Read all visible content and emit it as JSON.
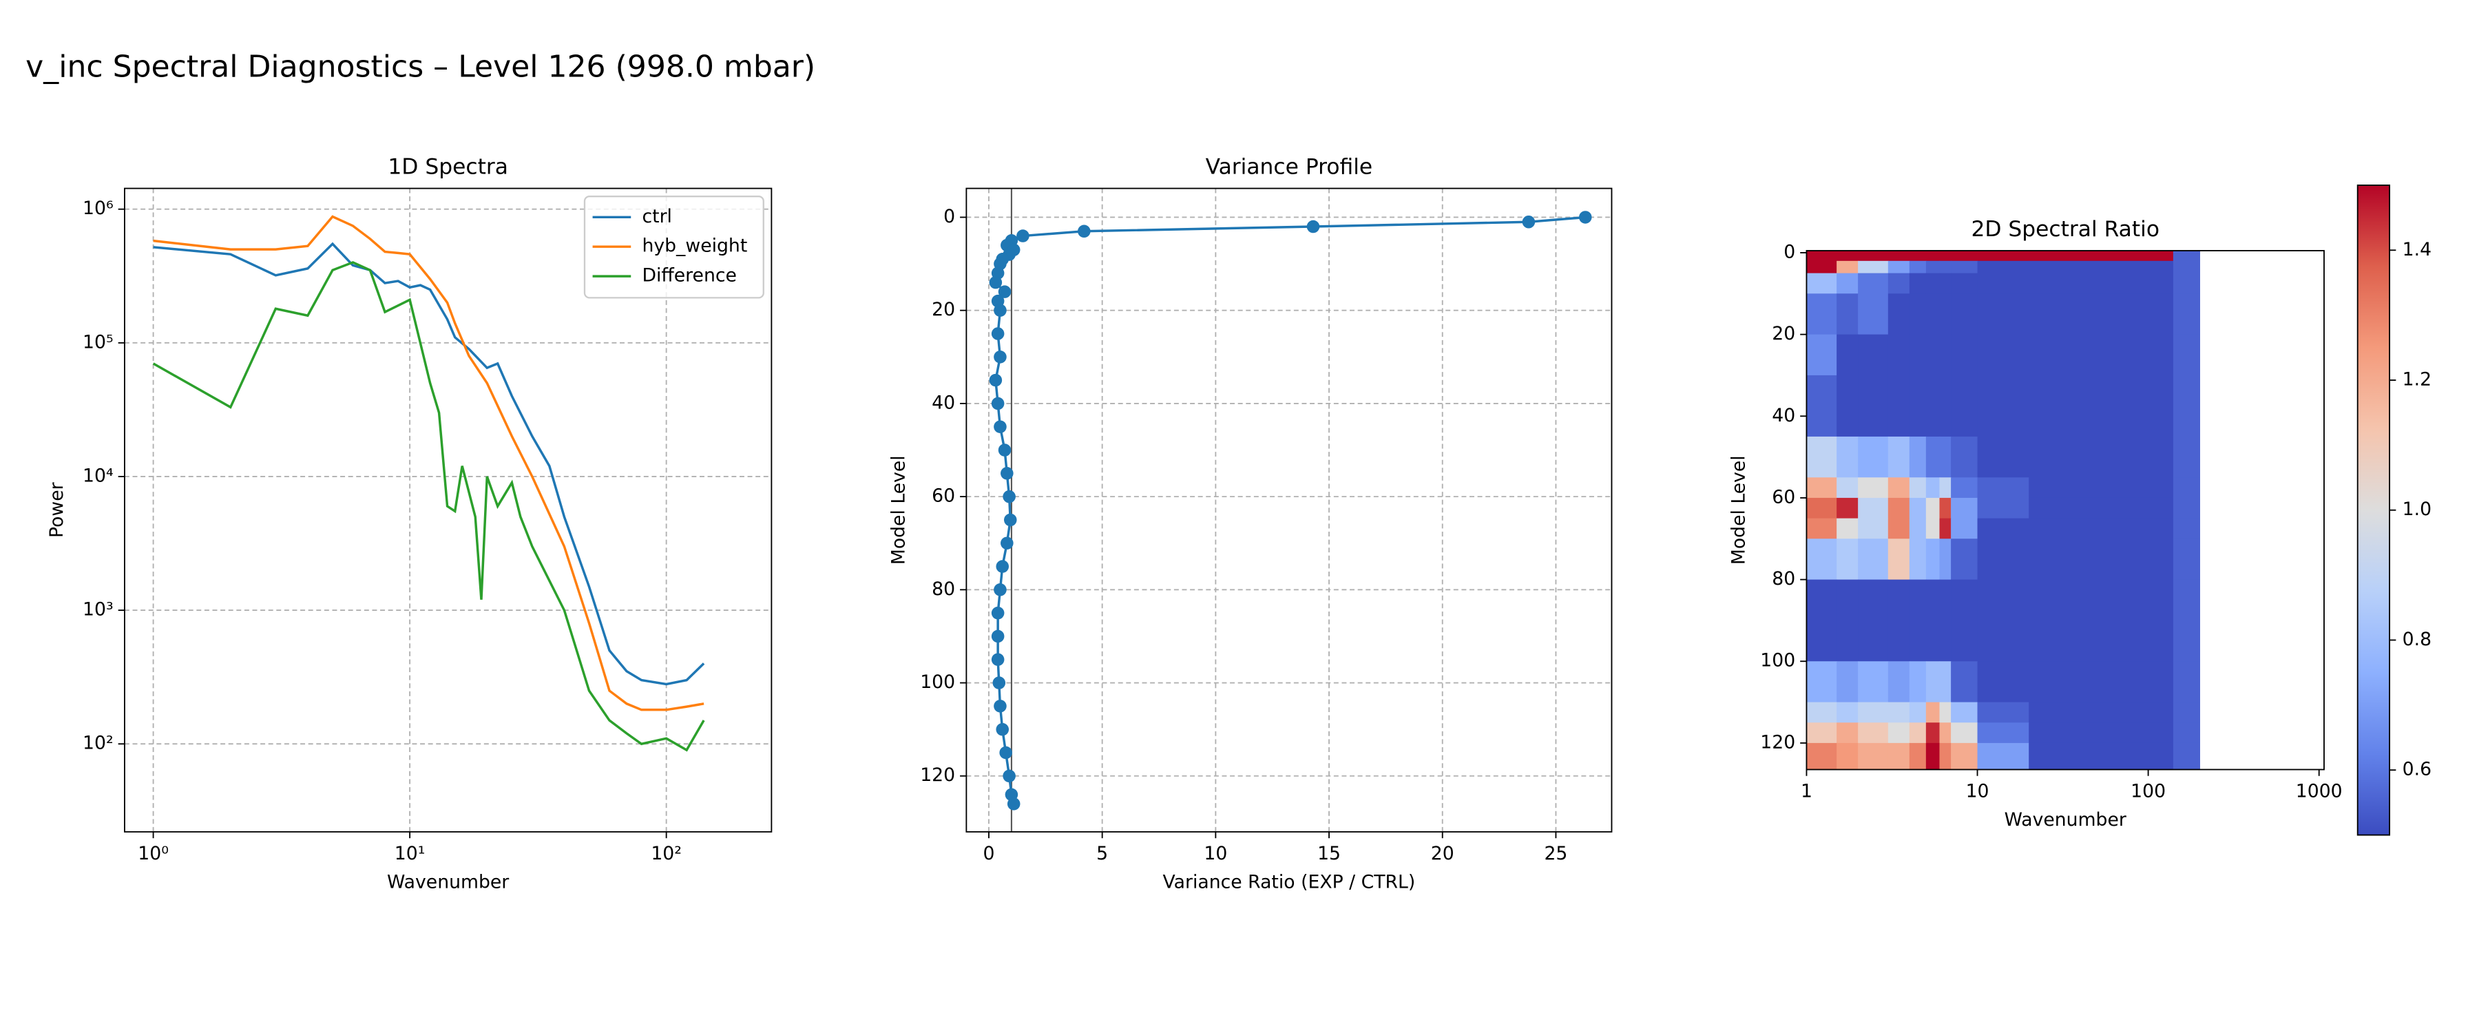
{
  "title": "v_inc Spectral Diagnostics – Level 126 (998.0 mbar)",
  "chart_data": [
    {
      "type": "line",
      "title": "1D Spectra",
      "x_label": "Wavenumber",
      "y_label": "Power",
      "xscale": "log",
      "yscale": "log",
      "xlim": [
        0.773,
        257
      ],
      "ylim": [
        22,
        1430000
      ],
      "xticks": [
        {
          "value": 1,
          "label": "10⁰"
        },
        {
          "value": 10,
          "label": "10¹"
        },
        {
          "value": 100,
          "label": "10²"
        }
      ],
      "yticks": [
        {
          "value": 100,
          "label": "10²"
        },
        {
          "value": 1000,
          "label": "10³"
        },
        {
          "value": 10000,
          "label": "10⁴"
        },
        {
          "value": 100000,
          "label": "10⁵"
        },
        {
          "value": 1000000,
          "label": "10⁶"
        }
      ],
      "grid": true,
      "legend": "upper right",
      "series": [
        {
          "name": "ctrl",
          "color": "#1f77b4",
          "x": [
            1,
            2,
            3,
            4,
            5,
            6,
            7,
            8,
            9,
            10,
            11,
            12,
            14,
            15,
            17,
            20,
            22,
            25,
            30,
            35,
            40,
            50,
            60,
            70,
            80,
            100,
            120,
            140
          ],
          "values": [
            520000,
            460000,
            320000,
            360000,
            550000,
            380000,
            350000,
            280000,
            290000,
            260000,
            270000,
            250000,
            150000,
            110000,
            90000,
            65000,
            70000,
            40000,
            20000,
            12000,
            5000,
            1500,
            500,
            350,
            300,
            280,
            300,
            400
          ]
        },
        {
          "name": "hyb_weight",
          "color": "#ff7f0e",
          "x": [
            1,
            2,
            3,
            4,
            5,
            6,
            7,
            8,
            9,
            10,
            12,
            14,
            15,
            17,
            20,
            25,
            30,
            40,
            50,
            60,
            70,
            80,
            100,
            120,
            140
          ],
          "values": [
            580000,
            500000,
            500000,
            530000,
            880000,
            750000,
            600000,
            480000,
            470000,
            460000,
            300000,
            200000,
            140000,
            80000,
            50000,
            20000,
            10000,
            3000,
            800,
            250,
            200,
            180,
            180,
            190,
            200
          ]
        },
        {
          "name": "Difference",
          "color": "#2ca02c",
          "x": [
            1,
            2,
            3,
            4,
            5,
            6,
            7,
            8,
            9,
            10,
            12,
            13,
            14,
            15,
            16,
            18,
            19,
            20,
            22,
            25,
            27,
            30,
            40,
            50,
            60,
            70,
            80,
            100,
            120,
            140
          ],
          "values": [
            70000,
            33000,
            180000,
            160000,
            350000,
            400000,
            350000,
            170000,
            190000,
            210000,
            50000,
            30000,
            6000,
            5500,
            12000,
            5000,
            1200,
            10000,
            6000,
            9000,
            5000,
            3000,
            1000,
            250,
            150,
            120,
            100,
            110,
            90,
            150
          ]
        }
      ]
    },
    {
      "type": "profile",
      "title": "Variance Profile",
      "x_label": "Variance Ratio (EXP / CTRL)",
      "y_label": "Model Level",
      "xlim": [
        -0.99,
        27.46
      ],
      "ylim": [
        -6.2,
        132
      ],
      "y_inverted": true,
      "xticks": [
        0,
        5,
        10,
        15,
        20,
        25
      ],
      "yticks": [
        0,
        20,
        40,
        60,
        80,
        100,
        120
      ],
      "grid": true,
      "reference_x": 1,
      "reference_color": "#555555",
      "series": [
        {
          "color": "#1f77b4",
          "x": [
            26.3,
            23.8,
            14.3,
            4.2,
            1.5,
            1.0,
            0.8,
            1.1,
            0.9,
            0.6,
            0.5,
            0.4,
            0.3,
            0.7,
            0.4,
            0.5,
            0.4,
            0.5,
            0.3,
            0.4,
            0.5,
            0.7,
            0.8,
            0.9,
            0.95,
            0.8,
            0.6,
            0.5,
            0.4,
            0.4,
            0.4,
            0.45,
            0.5,
            0.6,
            0.75,
            0.9,
            1.0,
            1.1
          ],
          "y": [
            0,
            1,
            2,
            3,
            4,
            5,
            6,
            7,
            8,
            9,
            10,
            12,
            14,
            16,
            18,
            20,
            25,
            30,
            35,
            40,
            45,
            50,
            55,
            60,
            65,
            70,
            75,
            80,
            85,
            90,
            95,
            100,
            105,
            110,
            115,
            120,
            124,
            126
          ]
        }
      ]
    },
    {
      "type": "heatmap",
      "title": "2D Spectral Ratio",
      "x_label": "Wavenumber",
      "y_label": "Model Level",
      "xscale": "log",
      "xlim": [
        1,
        1070
      ],
      "ylim": [
        -0.5,
        126.5
      ],
      "y_inverted": true,
      "xticks": [
        1,
        10,
        100,
        1000
      ],
      "yticks": [
        0,
        20,
        40,
        60,
        80,
        100,
        120
      ],
      "colormap": "coolwarm",
      "clim": [
        0.5,
        1.5
      ],
      "colorbar_ticks": [
        0.6,
        0.8,
        {
          "value": 1,
          "label": "1.0"
        },
        1.2,
        1.4
      ],
      "x_edges": [
        1,
        1.5,
        2,
        3,
        4,
        5,
        6,
        7,
        10,
        20,
        140,
        200
      ],
      "y_edges": [
        -0.5,
        2,
        5,
        10,
        20,
        30,
        45,
        55,
        60,
        65,
        70,
        80,
        100,
        110,
        115,
        120,
        126.5
      ],
      "z": [
        [
          1.5,
          1.5,
          1.5,
          1.5,
          1.5,
          1.5,
          1.5,
          1.5,
          1.5,
          1.5,
          0.55
        ],
        [
          1.5,
          1.2,
          0.9,
          0.7,
          0.6,
          0.55,
          0.55,
          0.55,
          0.5,
          0.5,
          0.55
        ],
        [
          0.8,
          0.7,
          0.6,
          0.55,
          0.5,
          0.5,
          0.5,
          0.5,
          0.5,
          0.5,
          0.55
        ],
        [
          0.6,
          0.55,
          0.6,
          0.5,
          0.5,
          0.5,
          0.5,
          0.5,
          0.5,
          0.5,
          0.55
        ],
        [
          0.65,
          0.5,
          0.5,
          0.5,
          0.5,
          0.5,
          0.5,
          0.5,
          0.5,
          0.5,
          0.55
        ],
        [
          0.55,
          0.5,
          0.5,
          0.5,
          0.5,
          0.5,
          0.5,
          0.5,
          0.5,
          0.5,
          0.55
        ],
        [
          0.9,
          0.8,
          0.75,
          0.8,
          0.7,
          0.6,
          0.6,
          0.55,
          0.5,
          0.5,
          0.55
        ],
        [
          1.2,
          0.9,
          1.0,
          1.2,
          0.9,
          0.8,
          0.9,
          0.6,
          0.55,
          0.5,
          0.55
        ],
        [
          1.35,
          1.45,
          0.9,
          1.3,
          0.8,
          1.0,
          1.4,
          0.7,
          0.55,
          0.5,
          0.55
        ],
        [
          1.3,
          1.0,
          0.9,
          1.3,
          0.8,
          1.0,
          1.45,
          0.7,
          0.5,
          0.5,
          0.55
        ],
        [
          0.8,
          0.85,
          0.8,
          1.1,
          0.8,
          0.75,
          0.7,
          0.55,
          0.5,
          0.5,
          0.55
        ],
        [
          0.5,
          0.5,
          0.5,
          0.5,
          0.5,
          0.5,
          0.5,
          0.5,
          0.5,
          0.5,
          0.55
        ],
        [
          0.75,
          0.7,
          0.75,
          0.7,
          0.75,
          0.8,
          0.8,
          0.55,
          0.5,
          0.5,
          0.55
        ],
        [
          0.9,
          0.85,
          0.9,
          0.9,
          0.85,
          1.2,
          1.0,
          0.8,
          0.55,
          0.5,
          0.55
        ],
        [
          1.1,
          1.2,
          1.1,
          1.0,
          1.1,
          1.45,
          1.2,
          1.0,
          0.6,
          0.5,
          0.55
        ],
        [
          1.3,
          1.25,
          1.2,
          1.2,
          1.3,
          1.5,
          1.3,
          1.2,
          0.7,
          0.5,
          0.55
        ]
      ]
    }
  ]
}
